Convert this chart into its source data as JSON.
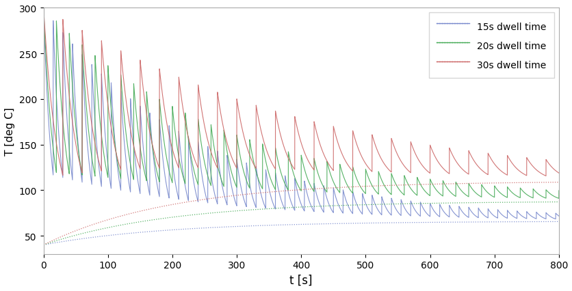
{
  "title": "",
  "xlabel": "t [s]",
  "ylabel": "T [deg C]",
  "xlim": [
    0,
    800
  ],
  "ylim": [
    30,
    300
  ],
  "xticks": [
    0,
    100,
    200,
    300,
    400,
    500,
    600,
    700,
    800
  ],
  "yticks": [
    50,
    100,
    150,
    200,
    250,
    300
  ],
  "series": [
    {
      "label": "15s dwell time",
      "color": "#7788cc",
      "dwell": 15,
      "baseline_end": 66,
      "baseline_tau": 200,
      "cool_tau": 12.0,
      "T_peak_init": 300,
      "peak_decay": 0.0042,
      "T_ambient": 40
    },
    {
      "label": "20s dwell time",
      "color": "#44aa55",
      "dwell": 20,
      "baseline_end": 88,
      "baseline_tau": 200,
      "cool_tau": 16.0,
      "T_peak_init": 300,
      "peak_decay": 0.0038,
      "T_ambient": 40
    },
    {
      "label": "30s dwell time",
      "color": "#cc6666",
      "dwell": 30,
      "baseline_end": 110,
      "baseline_tau": 200,
      "cool_tau": 22.0,
      "T_peak_init": 300,
      "peak_decay": 0.003,
      "T_ambient": 40
    }
  ],
  "legend_colors": [
    "#7788cc",
    "#44aa55",
    "#cc6666"
  ],
  "figsize": [
    8.37,
    4.27
  ],
  "dpi": 100
}
